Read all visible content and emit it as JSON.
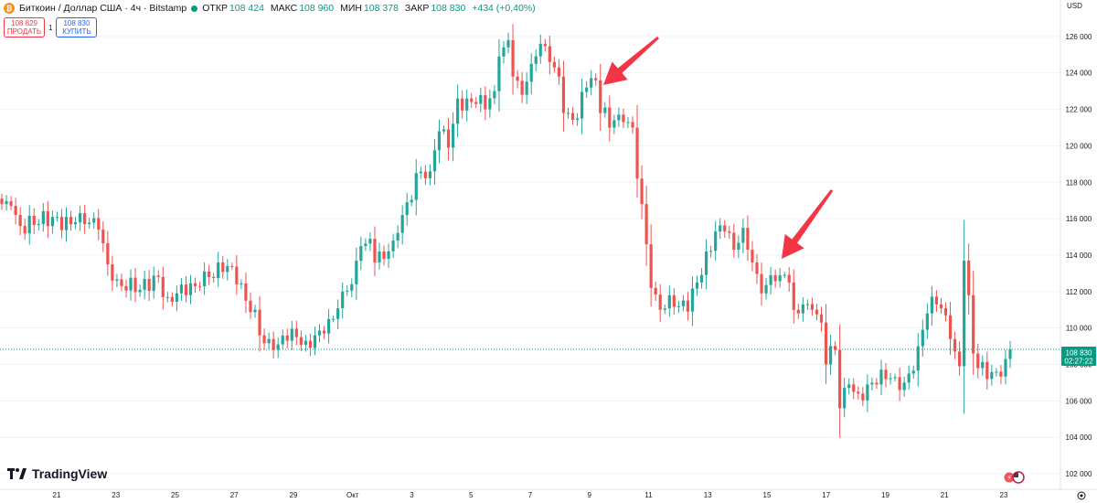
{
  "header": {
    "symbol": "Биткоин / Доллар США · 4ч · Bitstamp",
    "coin_icon": "bitcoin-icon",
    "ohlc": [
      {
        "k": "ОТКР",
        "v": "108 424"
      },
      {
        "k": "МАКС",
        "v": "108 960"
      },
      {
        "k": "МИН",
        "v": "108 378"
      },
      {
        "k": "ЗАКР",
        "v": "108 830"
      }
    ],
    "change": "+434 (+0,40%)"
  },
  "trade": {
    "sell_price": "108 829",
    "sell_label": "ПРОДАТЬ",
    "spread": "1",
    "buy_price": "108 830",
    "buy_label": "КУПИТЬ"
  },
  "currency": "USD",
  "brand": "TradingView",
  "colors": {
    "up": "#26a69a",
    "down": "#ef5350",
    "arrow": "#f23645",
    "price_line": "#089981"
  },
  "chart_data": {
    "type": "candlestick",
    "interval": "4h",
    "ylim": [
      101200,
      127400
    ],
    "y_ticks": [
      102000,
      104000,
      106000,
      108000,
      110000,
      112000,
      114000,
      116000,
      118000,
      120000,
      122000,
      124000,
      126000
    ],
    "y_tick_labels": [
      "102 000",
      "104 000",
      "106 000",
      "108 000",
      "110 000",
      "112 000",
      "114 000",
      "116 000",
      "118 000",
      "120 000",
      "122 000",
      "124 000",
      "126 000"
    ],
    "x_tick_labels": [
      "21",
      "23",
      "25",
      "27",
      "29",
      "Окт",
      "3",
      "5",
      "7",
      "9",
      "11",
      "13",
      "15",
      "17",
      "19",
      "21",
      "23"
    ],
    "last_price": "108 830",
    "countdown": "02:27:22",
    "anchors": [
      [
        0,
        116800
      ],
      [
        2,
        116700
      ],
      [
        4,
        115600
      ],
      [
        8,
        115700
      ],
      [
        12,
        116100
      ],
      [
        16,
        115800
      ],
      [
        18,
        115700
      ],
      [
        21,
        115400
      ],
      [
        24,
        112600
      ],
      [
        26,
        112300
      ],
      [
        30,
        112100
      ],
      [
        34,
        112800
      ],
      [
        36,
        111700
      ],
      [
        38,
        111900
      ],
      [
        40,
        111800
      ],
      [
        42,
        112300
      ],
      [
        44,
        113100
      ],
      [
        45,
        112800
      ],
      [
        47,
        113600
      ],
      [
        49,
        113400
      ],
      [
        51,
        112400
      ],
      [
        53,
        111500
      ],
      [
        55,
        111000
      ],
      [
        56,
        109600
      ],
      [
        58,
        109400
      ],
      [
        60,
        109100
      ],
      [
        62,
        109300
      ],
      [
        64,
        109500
      ],
      [
        66,
        109300
      ],
      [
        68,
        109600
      ],
      [
        70,
        109700
      ],
      [
        72,
        110500
      ],
      [
        74,
        112000
      ],
      [
        76,
        112400
      ],
      [
        78,
        114500
      ],
      [
        80,
        114900
      ],
      [
        81,
        113600
      ],
      [
        83,
        113800
      ],
      [
        85,
        114800
      ],
      [
        87,
        116200
      ],
      [
        88,
        116900
      ],
      [
        90,
        118500
      ],
      [
        93,
        118600
      ],
      [
        95,
        120800
      ],
      [
        97,
        119900
      ],
      [
        99,
        122600
      ],
      [
        101,
        122600
      ],
      [
        103,
        122300
      ],
      [
        105,
        122000
      ],
      [
        107,
        123000
      ],
      [
        108,
        124900
      ],
      [
        110,
        125800
      ],
      [
        111,
        123800
      ],
      [
        113,
        122800
      ],
      [
        115,
        124500
      ],
      [
        117,
        125600
      ],
      [
        119,
        124600
      ],
      [
        120,
        124300
      ],
      [
        121,
        123800
      ],
      [
        122,
        121800
      ],
      [
        123,
        121800
      ],
      [
        125,
        121500
      ],
      [
        127,
        123200
      ],
      [
        129,
        123600
      ],
      [
        130,
        121800
      ],
      [
        131,
        122100
      ],
      [
        132,
        121000
      ],
      [
        133,
        121400
      ],
      [
        135,
        121300
      ],
      [
        137,
        121000
      ],
      [
        138,
        118200
      ],
      [
        140,
        114600
      ],
      [
        141,
        112200
      ],
      [
        143,
        111000
      ],
      [
        145,
        111800
      ],
      [
        147,
        111200
      ],
      [
        149,
        110900
      ],
      [
        151,
        112500
      ],
      [
        153,
        114200
      ],
      [
        155,
        115300
      ],
      [
        157,
        115300
      ],
      [
        159,
        114300
      ],
      [
        161,
        115500
      ],
      [
        162,
        114300
      ],
      [
        163,
        113600
      ],
      [
        165,
        111900
      ],
      [
        167,
        112900
      ],
      [
        169,
        112900
      ],
      [
        171,
        112500
      ],
      [
        172,
        111000
      ],
      [
        174,
        111300
      ],
      [
        176,
        111000
      ],
      [
        178,
        110300
      ],
      [
        179,
        108000
      ],
      [
        181,
        108800
      ],
      [
        182,
        105600
      ],
      [
        184,
        106900
      ],
      [
        186,
        106400
      ],
      [
        188,
        106900
      ],
      [
        190,
        106900
      ],
      [
        192,
        107200
      ],
      [
        194,
        107300
      ],
      [
        195,
        106600
      ],
      [
        197,
        107500
      ],
      [
        199,
        109000
      ],
      [
        201,
        110800
      ],
      [
        203,
        111300
      ],
      [
        205,
        110700
      ],
      [
        206,
        109400
      ],
      [
        208,
        107900
      ],
      [
        209,
        113700
      ],
      [
        210,
        111800
      ],
      [
        211,
        108600
      ],
      [
        212,
        107800
      ],
      [
        214,
        107200
      ],
      [
        216,
        107600
      ],
      [
        218,
        108300
      ],
      [
        219,
        108830
      ]
    ],
    "candle_count": 220
  },
  "annotations": [
    {
      "name": "arrow-annotation-top"
    },
    {
      "name": "arrow-annotation-bottom"
    }
  ]
}
